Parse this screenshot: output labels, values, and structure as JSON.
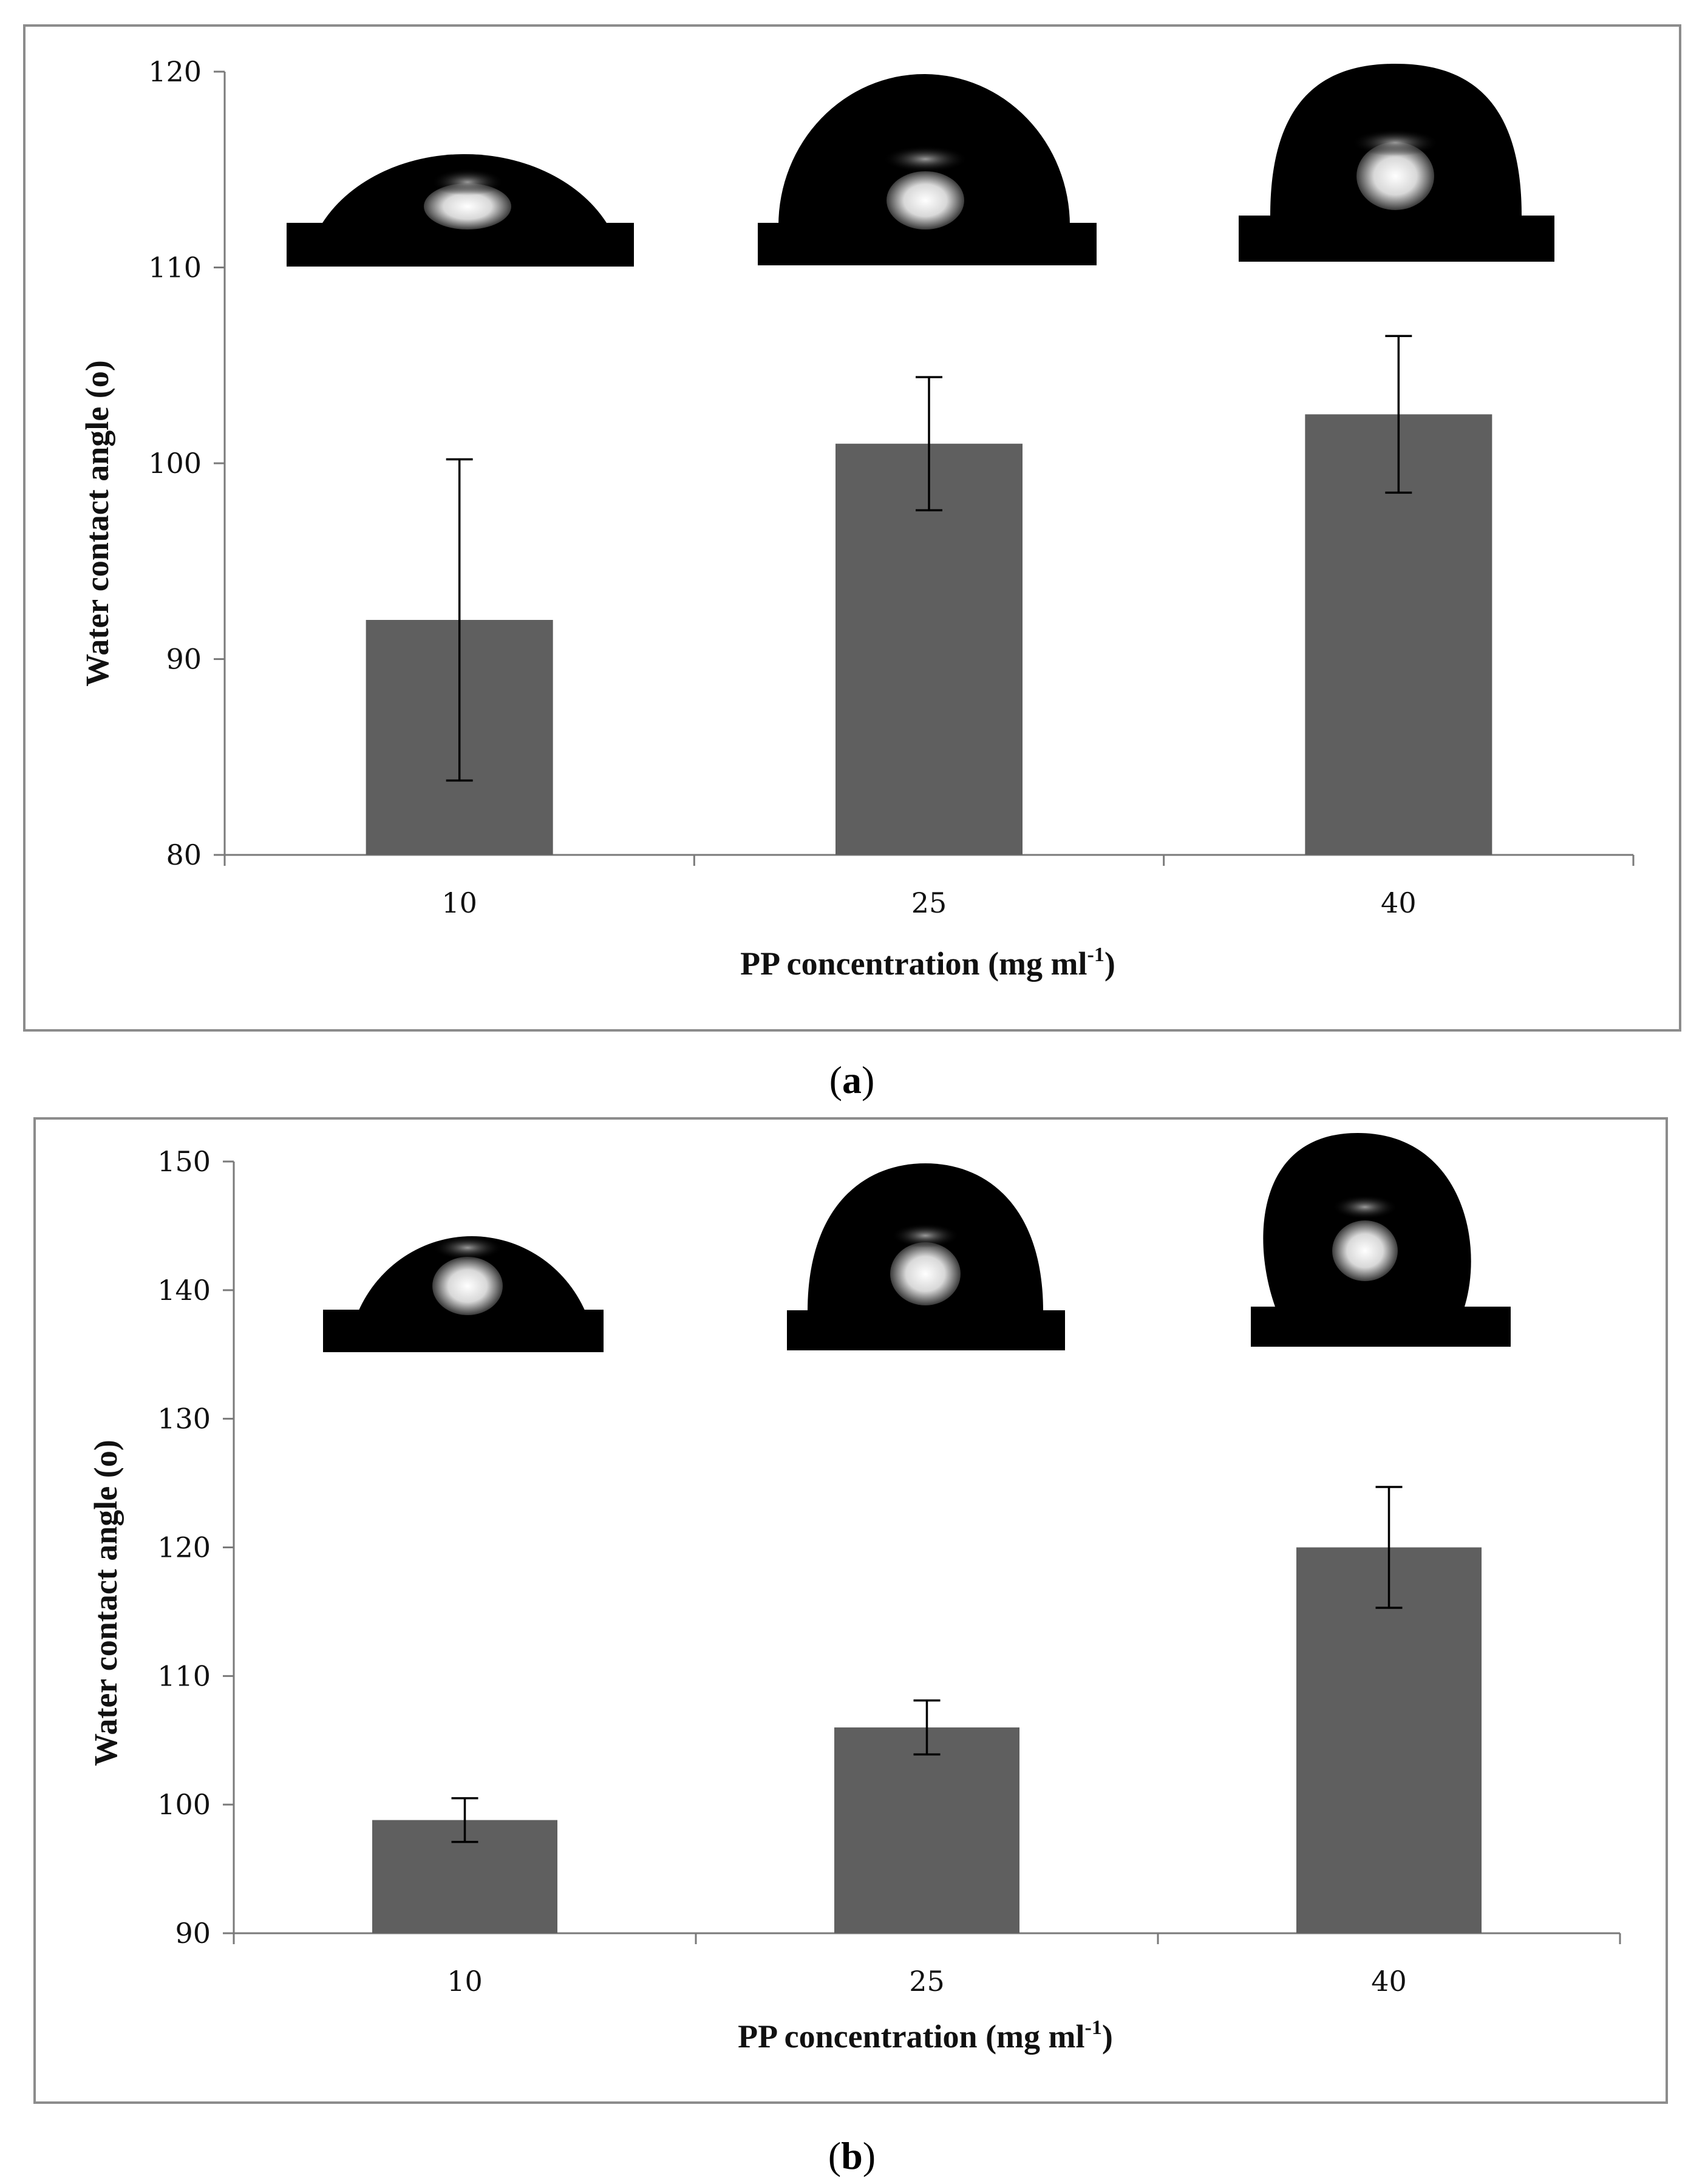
{
  "chart_data": [
    {
      "id": "a",
      "panel_label": "a",
      "type": "bar",
      "categories": [
        "10",
        "25",
        "40"
      ],
      "values": [
        92,
        101,
        102.5
      ],
      "error": [
        8.2,
        3.4,
        4.0
      ],
      "ylim": [
        80,
        120
      ],
      "yticks": [
        "80",
        "90",
        "100",
        "110",
        "120"
      ],
      "ylabel": "Water contact angle (o)",
      "xlabel_main": "PP concentration  (mg ml",
      "xlabel_sup": "-1",
      "xlabel_close": ")",
      "bar_color": "#5f5f5f",
      "grid": false
    },
    {
      "id": "b",
      "panel_label": "b",
      "type": "bar",
      "categories": [
        "10",
        "25",
        "40"
      ],
      "values": [
        98.8,
        106,
        120
      ],
      "error": [
        1.7,
        2.1,
        4.7
      ],
      "ylim": [
        90,
        150
      ],
      "yticks": [
        "90",
        "100",
        "110",
        "120",
        "130",
        "140",
        "150"
      ],
      "ylabel": "Water contact angle (o)",
      "xlabel_main": "PP concentration  (mg ml",
      "xlabel_sup": "-1",
      "xlabel_close": ")",
      "bar_color": "#5f5f5f",
      "grid": false
    }
  ]
}
